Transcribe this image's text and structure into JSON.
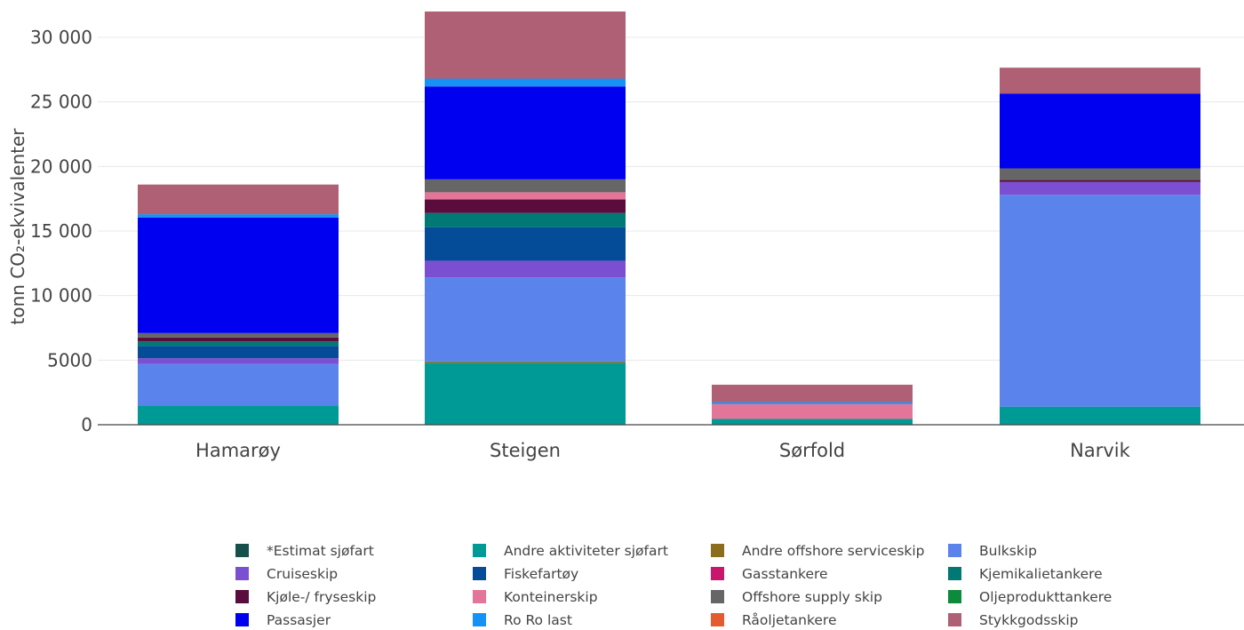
{
  "chart_data": {
    "type": "bar",
    "stacked": true,
    "title": "",
    "xlabel": "",
    "ylabel": "tonn CO₂-ekvivalenter",
    "ylim": [
      0,
      32000
    ],
    "yticks": [
      0,
      5000,
      10000,
      15000,
      20000,
      25000,
      30000
    ],
    "ytick_labels": [
      "0",
      "5000",
      "10 000",
      "15 000",
      "20 000",
      "25 000",
      "30 000"
    ],
    "grid": true,
    "legend_position": "bottom",
    "categories": [
      "Hamarøy",
      "Steigen",
      "Sørfold",
      "Narvik"
    ],
    "series": [
      {
        "name": "*Estimat sjøfart",
        "color": "#17504a",
        "values": [
          0,
          0,
          0,
          0
        ]
      },
      {
        "name": "Andre aktiviteter sjøfart",
        "color": "#009a96",
        "values": [
          1500,
          4800,
          450,
          1400
        ]
      },
      {
        "name": "Andre offshore serviceskip",
        "color": "#8b6d1e",
        "values": [
          0,
          100,
          0,
          0
        ]
      },
      {
        "name": "Bulkskip",
        "color": "#5a83ec",
        "values": [
          3200,
          6500,
          0,
          16400
        ]
      },
      {
        "name": "Cruiseskip",
        "color": "#7b4fd1",
        "values": [
          450,
          1300,
          0,
          1000
        ]
      },
      {
        "name": "Fiskefartøy",
        "color": "#044c97",
        "values": [
          950,
          2600,
          0,
          0
        ]
      },
      {
        "name": "Gasstankere",
        "color": "#c8186e",
        "values": [
          0,
          0,
          0,
          0
        ]
      },
      {
        "name": "Kjemikalietankere",
        "color": "#007873",
        "values": [
          350,
          1100,
          0,
          0
        ]
      },
      {
        "name": "Kjøle-/ fryseskip",
        "color": "#5a0c3c",
        "values": [
          300,
          1050,
          0,
          150
        ]
      },
      {
        "name": "Konteinerskip",
        "color": "#e27598",
        "values": [
          0,
          550,
          1150,
          0
        ]
      },
      {
        "name": "Offshore supply skip",
        "color": "#666666",
        "values": [
          350,
          1000,
          0,
          900
        ]
      },
      {
        "name": "Oljeprodukttankere",
        "color": "#0d8a3c",
        "values": [
          0,
          0,
          0,
          0
        ]
      },
      {
        "name": "Passasjer",
        "color": "#0000f0",
        "values": [
          8950,
          7200,
          0,
          5800
        ]
      },
      {
        "name": "Ro Ro last",
        "color": "#1691f5",
        "values": [
          250,
          600,
          150,
          0
        ]
      },
      {
        "name": "Råoljetankere",
        "color": "#e35b2f",
        "values": [
          0,
          0,
          0,
          0
        ]
      },
      {
        "name": "Stykkgodsskip",
        "color": "#b06075",
        "values": [
          2300,
          5200,
          1350,
          2000
        ]
      }
    ]
  }
}
